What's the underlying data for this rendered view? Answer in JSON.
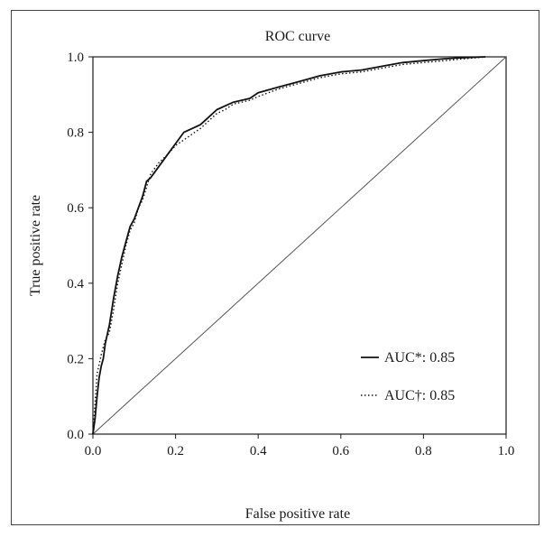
{
  "chart_data": {
    "type": "line",
    "title": "ROC curve",
    "xlabel": "False positive rate",
    "ylabel": "True positive rate",
    "xlim": [
      0,
      1
    ],
    "ylim": [
      0,
      1
    ],
    "xticks": [
      "0.0",
      "0.2",
      "0.4",
      "0.6",
      "0.8",
      "1.0"
    ],
    "yticks": [
      "0.0",
      "0.2",
      "0.4",
      "0.6",
      "0.8",
      "1.0"
    ],
    "legend_position": "lower-right",
    "grid": false,
    "reference_line": {
      "x": [
        0,
        1
      ],
      "y": [
        0,
        1
      ]
    },
    "series": [
      {
        "name": "AUC*: 0.85",
        "style": "solid",
        "x": [
          0,
          0.005,
          0.01,
          0.015,
          0.02,
          0.025,
          0.03,
          0.04,
          0.05,
          0.06,
          0.07,
          0.08,
          0.09,
          0.1,
          0.11,
          0.12,
          0.13,
          0.14,
          0.16,
          0.18,
          0.2,
          0.22,
          0.24,
          0.26,
          0.28,
          0.3,
          0.32,
          0.34,
          0.36,
          0.38,
          0.4,
          0.45,
          0.5,
          0.55,
          0.6,
          0.65,
          0.7,
          0.75,
          0.8,
          0.85,
          0.9,
          0.95
        ],
        "y": [
          0,
          0.04,
          0.1,
          0.15,
          0.18,
          0.2,
          0.24,
          0.29,
          0.36,
          0.42,
          0.47,
          0.51,
          0.55,
          0.57,
          0.6,
          0.63,
          0.67,
          0.68,
          0.71,
          0.74,
          0.77,
          0.8,
          0.81,
          0.82,
          0.84,
          0.86,
          0.87,
          0.88,
          0.885,
          0.89,
          0.905,
          0.92,
          0.935,
          0.95,
          0.96,
          0.965,
          0.975,
          0.985,
          0.99,
          0.995,
          0.998,
          1.0
        ]
      },
      {
        "name": "AUC†: 0.85",
        "style": "dotted",
        "x": [
          0,
          0.005,
          0.01,
          0.02,
          0.03,
          0.04,
          0.05,
          0.06,
          0.07,
          0.08,
          0.09,
          0.1,
          0.11,
          0.12,
          0.13,
          0.14,
          0.16,
          0.18,
          0.2,
          0.22,
          0.24,
          0.26,
          0.28,
          0.3,
          0.32,
          0.34,
          0.36,
          0.38,
          0.4,
          0.45,
          0.5,
          0.55,
          0.6,
          0.65,
          0.7,
          0.75,
          0.8,
          0.85,
          0.9,
          0.95
        ],
        "y": [
          0,
          0.08,
          0.16,
          0.21,
          0.25,
          0.27,
          0.33,
          0.4,
          0.45,
          0.5,
          0.54,
          0.56,
          0.6,
          0.62,
          0.655,
          0.69,
          0.72,
          0.74,
          0.765,
          0.78,
          0.795,
          0.81,
          0.83,
          0.85,
          0.86,
          0.875,
          0.88,
          0.885,
          0.895,
          0.915,
          0.93,
          0.945,
          0.955,
          0.96,
          0.97,
          0.98,
          0.985,
          0.99,
          0.995,
          1.0
        ]
      }
    ]
  }
}
